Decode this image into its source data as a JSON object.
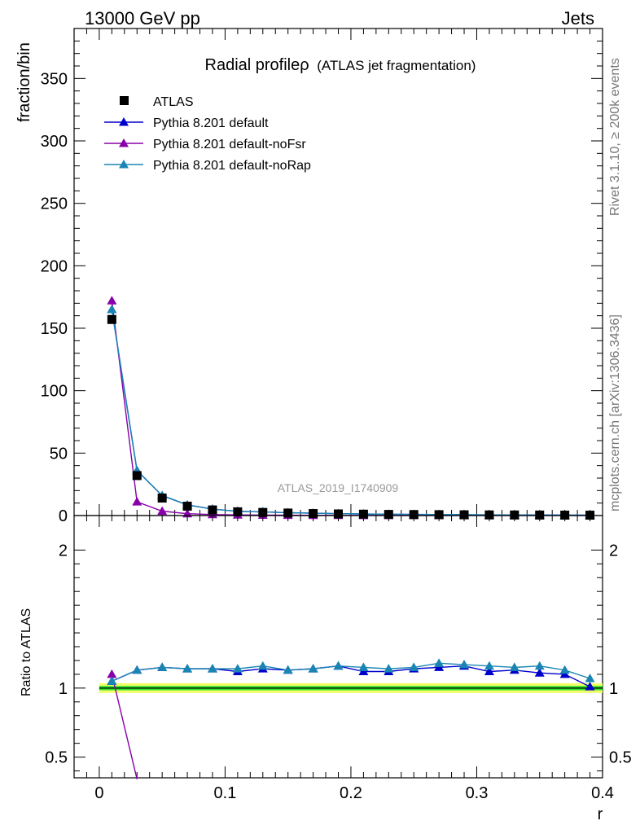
{
  "header": {
    "energy_label": "13000 GeV pp",
    "category_label": "Jets",
    "analysis_label": "ATLAS_2019_I1740909",
    "side_label_top": "Rivet 3.1.10, ≥ 200k events",
    "side_label_bottom": "mcplots.cern.ch [arXiv:1306.3436]"
  },
  "chart_data": [
    {
      "type": "line",
      "title": "Radial profileρ",
      "subtitle": "(ATLAS jet fragmentation)",
      "xlabel": "r",
      "ylabel": "fraction/bin",
      "xlim": [
        -0.02,
        0.4
      ],
      "ylim": [
        0,
        390
      ],
      "x": [
        0.01,
        0.03,
        0.05,
        0.07,
        0.09,
        0.11,
        0.13,
        0.15,
        0.17,
        0.19,
        0.21,
        0.23,
        0.25,
        0.27,
        0.29,
        0.31,
        0.33,
        0.35,
        0.37,
        0.39
      ],
      "x_ticks": [
        0,
        0.1,
        0.2,
        0.3,
        0.4
      ],
      "x_tick_labels": [
        "0",
        "0.1",
        "0.2",
        "0.3",
        "0.4"
      ],
      "y_ticks": [
        0,
        50,
        100,
        150,
        200,
        250,
        300,
        350
      ],
      "y_tick_labels": [
        "0",
        "50",
        "100",
        "150",
        "200",
        "250",
        "300",
        "350"
      ],
      "legend_position": "top-left",
      "series": [
        {
          "name": "ATLAS",
          "marker": "square",
          "color": "#000000",
          "values": [
            157,
            32,
            14,
            7.5,
            4.5,
            3.0,
            2.5,
            2.0,
            1.6,
            1.3,
            1.1,
            0.9,
            0.8,
            0.7,
            0.6,
            0.5,
            0.45,
            0.4,
            0.35,
            0.3
          ]
        },
        {
          "name": "Pythia 8.201 default",
          "marker": "triangle",
          "color": "#0000cc",
          "values": [
            165,
            36,
            16,
            8.5,
            5.2,
            3.4,
            2.9,
            2.3,
            1.9,
            1.5,
            1.25,
            1.0,
            0.9,
            0.8,
            0.7,
            0.55,
            0.5,
            0.45,
            0.38,
            0.31
          ]
        },
        {
          "name": "Pythia 8.201 default-noFsr",
          "marker": "triangle",
          "color": "#8800aa",
          "values": [
            172,
            11,
            3.5,
            1.5,
            0.8,
            0.5,
            0.35,
            0.25,
            0.2,
            0.15,
            0.12,
            0.1,
            0.08,
            0.07,
            0.06,
            0.05,
            0.04,
            0.04,
            0.03,
            0.03
          ]
        },
        {
          "name": "Pythia 8.201 default-noRap",
          "marker": "triangle",
          "color": "#1a85b3",
          "values": [
            165,
            36,
            16,
            8.5,
            5.2,
            3.4,
            2.9,
            2.3,
            1.9,
            1.5,
            1.3,
            1.05,
            0.92,
            0.83,
            0.72,
            0.58,
            0.52,
            0.47,
            0.39,
            0.32
          ]
        }
      ]
    },
    {
      "type": "line",
      "ylabel": "Ratio to ATLAS",
      "xlabel": "r",
      "xlim": [
        -0.02,
        0.4
      ],
      "ylim": [
        0.35,
        2.25
      ],
      "y_ticks": [
        0.5,
        1,
        2
      ],
      "y_tick_labels": [
        "0.5",
        "1",
        "2"
      ],
      "band_colors": {
        "inner": "#2ee02e",
        "outer": "#f0ff66"
      },
      "reference_line_value": 1.0,
      "band_halfwidth": 0.035,
      "series": [
        {
          "name": "Pythia 8.201 default",
          "color": "#0000cc",
          "values": [
            1.05,
            1.13,
            1.15,
            1.14,
            1.14,
            1.12,
            1.14,
            1.13,
            1.14,
            1.16,
            1.12,
            1.12,
            1.14,
            1.15,
            1.16,
            1.12,
            1.13,
            1.11,
            1.1,
            1.01
          ]
        },
        {
          "name": "Pythia 8.201 default-noFsr",
          "color": "#8800aa",
          "values": [
            1.1,
            0.34,
            null,
            null,
            null,
            null,
            null,
            null,
            null,
            null,
            null,
            null,
            null,
            null,
            null,
            null,
            null,
            null,
            null,
            null
          ]
        },
        {
          "name": "Pythia 8.201 default-noRap",
          "color": "#1a85b3",
          "values": [
            1.05,
            1.13,
            1.15,
            1.14,
            1.14,
            1.14,
            1.16,
            1.13,
            1.14,
            1.16,
            1.15,
            1.14,
            1.15,
            1.18,
            1.17,
            1.16,
            1.15,
            1.16,
            1.13,
            1.07
          ]
        }
      ]
    }
  ]
}
